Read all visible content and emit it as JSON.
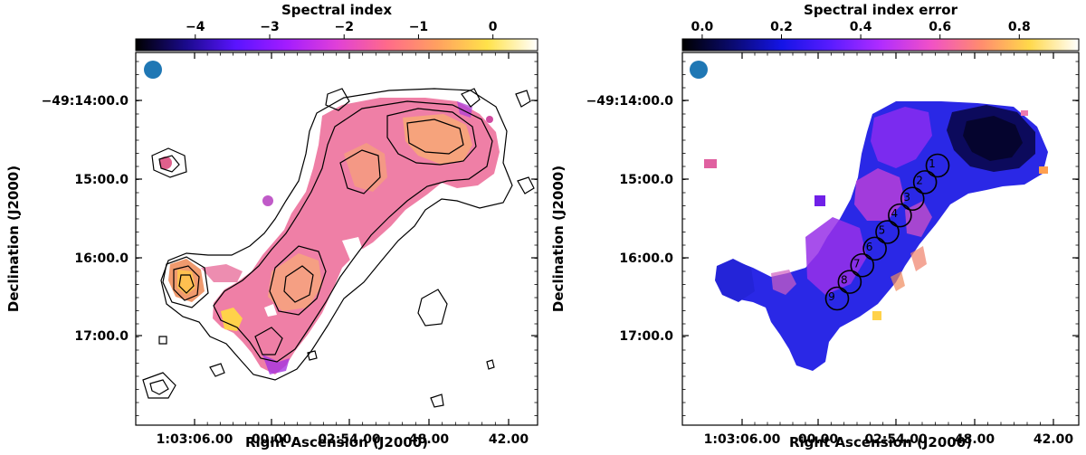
{
  "chart_data": [
    {
      "type": "heatmap",
      "panel": "left",
      "title": "Spectral index",
      "xlabel": "Right Ascension (J2000)",
      "ylabel": "Declination (J2000)",
      "x_ticks": [
        "1:03:06.00",
        "00.00",
        "02:54.00",
        "48.00",
        "42.00"
      ],
      "y_ticks": [
        "−49:14:00.0",
        "15:00.0",
        "16:00.0",
        "17:00.0"
      ],
      "colorbar": {
        "label": "Spectral index",
        "range": [
          -4.8,
          0.6
        ],
        "ticks": [
          {
            "value": -4,
            "label": "−4"
          },
          {
            "value": -3,
            "label": "−3"
          },
          {
            "value": -2,
            "label": "−2"
          },
          {
            "value": -1,
            "label": "−1"
          },
          {
            "value": 0,
            "label": "0"
          }
        ],
        "colormap": "plasma-like",
        "stops": [
          "#000000",
          "#1a0a8c",
          "#5a14ff",
          "#a31cff",
          "#e040d8",
          "#ff6a8a",
          "#ffa060",
          "#ffe24a",
          "#ffffff"
        ]
      },
      "beam_color": "#1f77b4",
      "contours": true
    },
    {
      "type": "heatmap",
      "panel": "right",
      "title": "Spectral index error",
      "xlabel": "Right Ascension (J2000)",
      "ylabel": "Declination (J2000)",
      "x_ticks": [
        "1:03:06.00",
        "00.00",
        "02:54.00",
        "48.00",
        "42.00"
      ],
      "y_ticks": [
        "−49:14:00.0",
        "15:00.0",
        "16:00.0",
        "17:00.0"
      ],
      "colorbar": {
        "label": "Spectral index error",
        "range": [
          -0.05,
          0.95
        ],
        "ticks": [
          {
            "value": 0.0,
            "label": "0.0"
          },
          {
            "value": 0.2,
            "label": "0.2"
          },
          {
            "value": 0.4,
            "label": "0.4"
          },
          {
            "value": 0.6,
            "label": "0.6"
          },
          {
            "value": 0.8,
            "label": "0.8"
          }
        ],
        "colormap": "plasma-like",
        "stops": [
          "#000000",
          "#0a0a6e",
          "#1414e6",
          "#5a1cff",
          "#b02cff",
          "#f050c8",
          "#ff8a70",
          "#ffd84a",
          "#ffffff"
        ]
      },
      "beam_color": "#1f77b4",
      "regions": [
        "1",
        "2",
        "3",
        "4",
        "5",
        "6",
        "7",
        "8",
        "9"
      ]
    }
  ]
}
